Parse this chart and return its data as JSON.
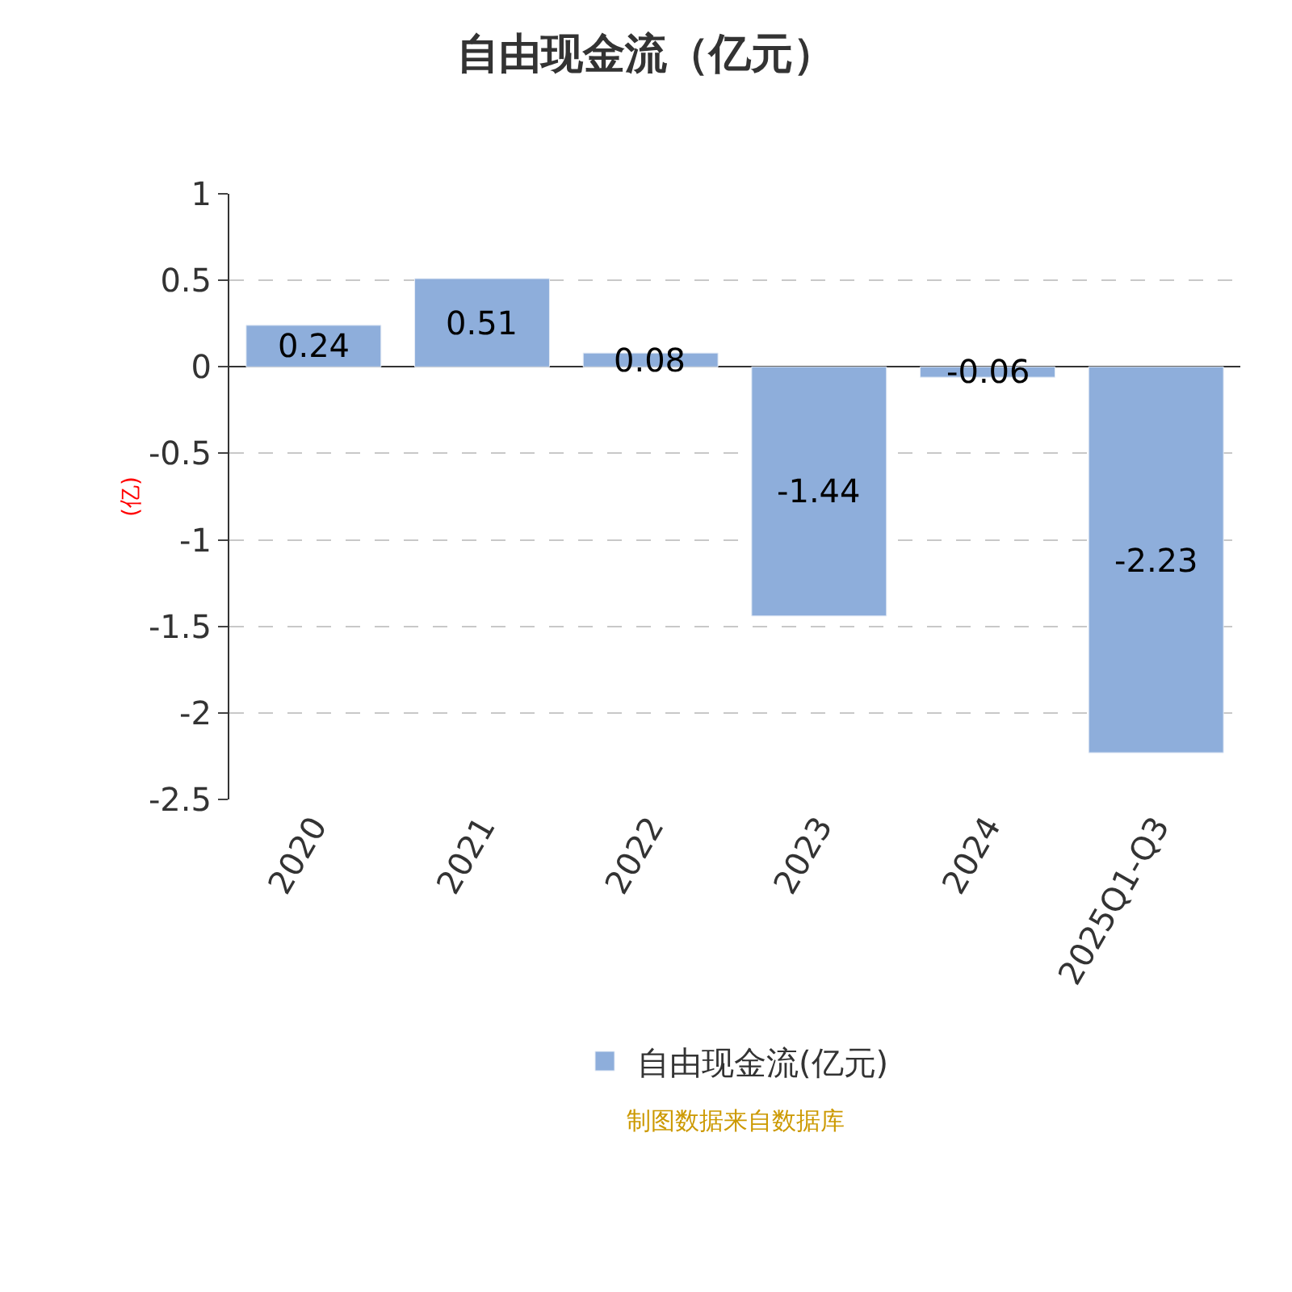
{
  "chart_data": {
    "type": "bar",
    "title": "自由现金流（亿元）",
    "ylabel": "(亿)",
    "categories": [
      "2020",
      "2021",
      "2022",
      "2023",
      "2024",
      "2025Q1-Q3"
    ],
    "series": [
      {
        "name": "自由现金流(亿元)",
        "color": "#8eaedb",
        "values": [
          0.24,
          0.51,
          0.08,
          -1.44,
          -0.06,
          -2.23
        ]
      }
    ],
    "ylim": [
      -2.5,
      1
    ],
    "yticks": [
      1,
      0.5,
      0,
      -0.5,
      -1,
      -1.5,
      -2,
      -2.5
    ],
    "grid": "y",
    "legend": "bottom",
    "data_labels": true,
    "annotations": [
      "制图数据来自数据库"
    ]
  }
}
